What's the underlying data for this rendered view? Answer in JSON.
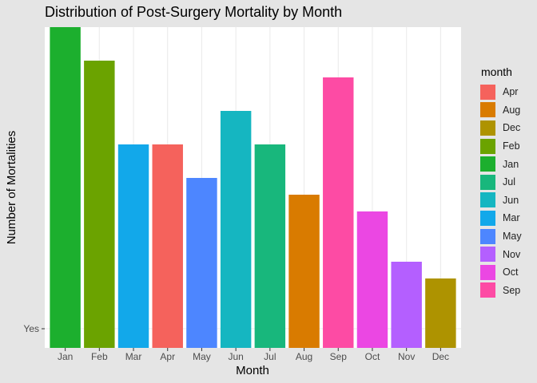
{
  "chart_data": {
    "type": "bar",
    "title": "Distribution of Post-Surgery Mortality by Month",
    "xlabel": "Month",
    "ylabel": "Number of Mortalities",
    "y_tick_labels": [
      "Yes"
    ],
    "categories": [
      "Jan",
      "Feb",
      "Mar",
      "Apr",
      "May",
      "Jun",
      "Jul",
      "Aug",
      "Sep",
      "Oct",
      "Nov",
      "Dec"
    ],
    "values": [
      18,
      16,
      11,
      11,
      9,
      13,
      11,
      8,
      15,
      7,
      4,
      3
    ],
    "bar_colors": {
      "Jan": "#1CAF2E",
      "Feb": "#6BA300",
      "Mar": "#12A8EA",
      "Apr": "#F5625C",
      "May": "#4D86FF",
      "Jun": "#15B6C1",
      "Jul": "#18B77C",
      "Aug": "#D97B00",
      "Sep": "#FD4BA4",
      "Oct": "#EB47E3",
      "Nov": "#B45FFF",
      "Dec": "#AE9300"
    },
    "ylim": [
      0,
      18
    ],
    "grid": true,
    "legend": {
      "title": "month",
      "position": "right",
      "entries": [
        "Apr",
        "Aug",
        "Dec",
        "Feb",
        "Jan",
        "Jul",
        "Jun",
        "Mar",
        "May",
        "Nov",
        "Oct",
        "Sep"
      ]
    }
  }
}
